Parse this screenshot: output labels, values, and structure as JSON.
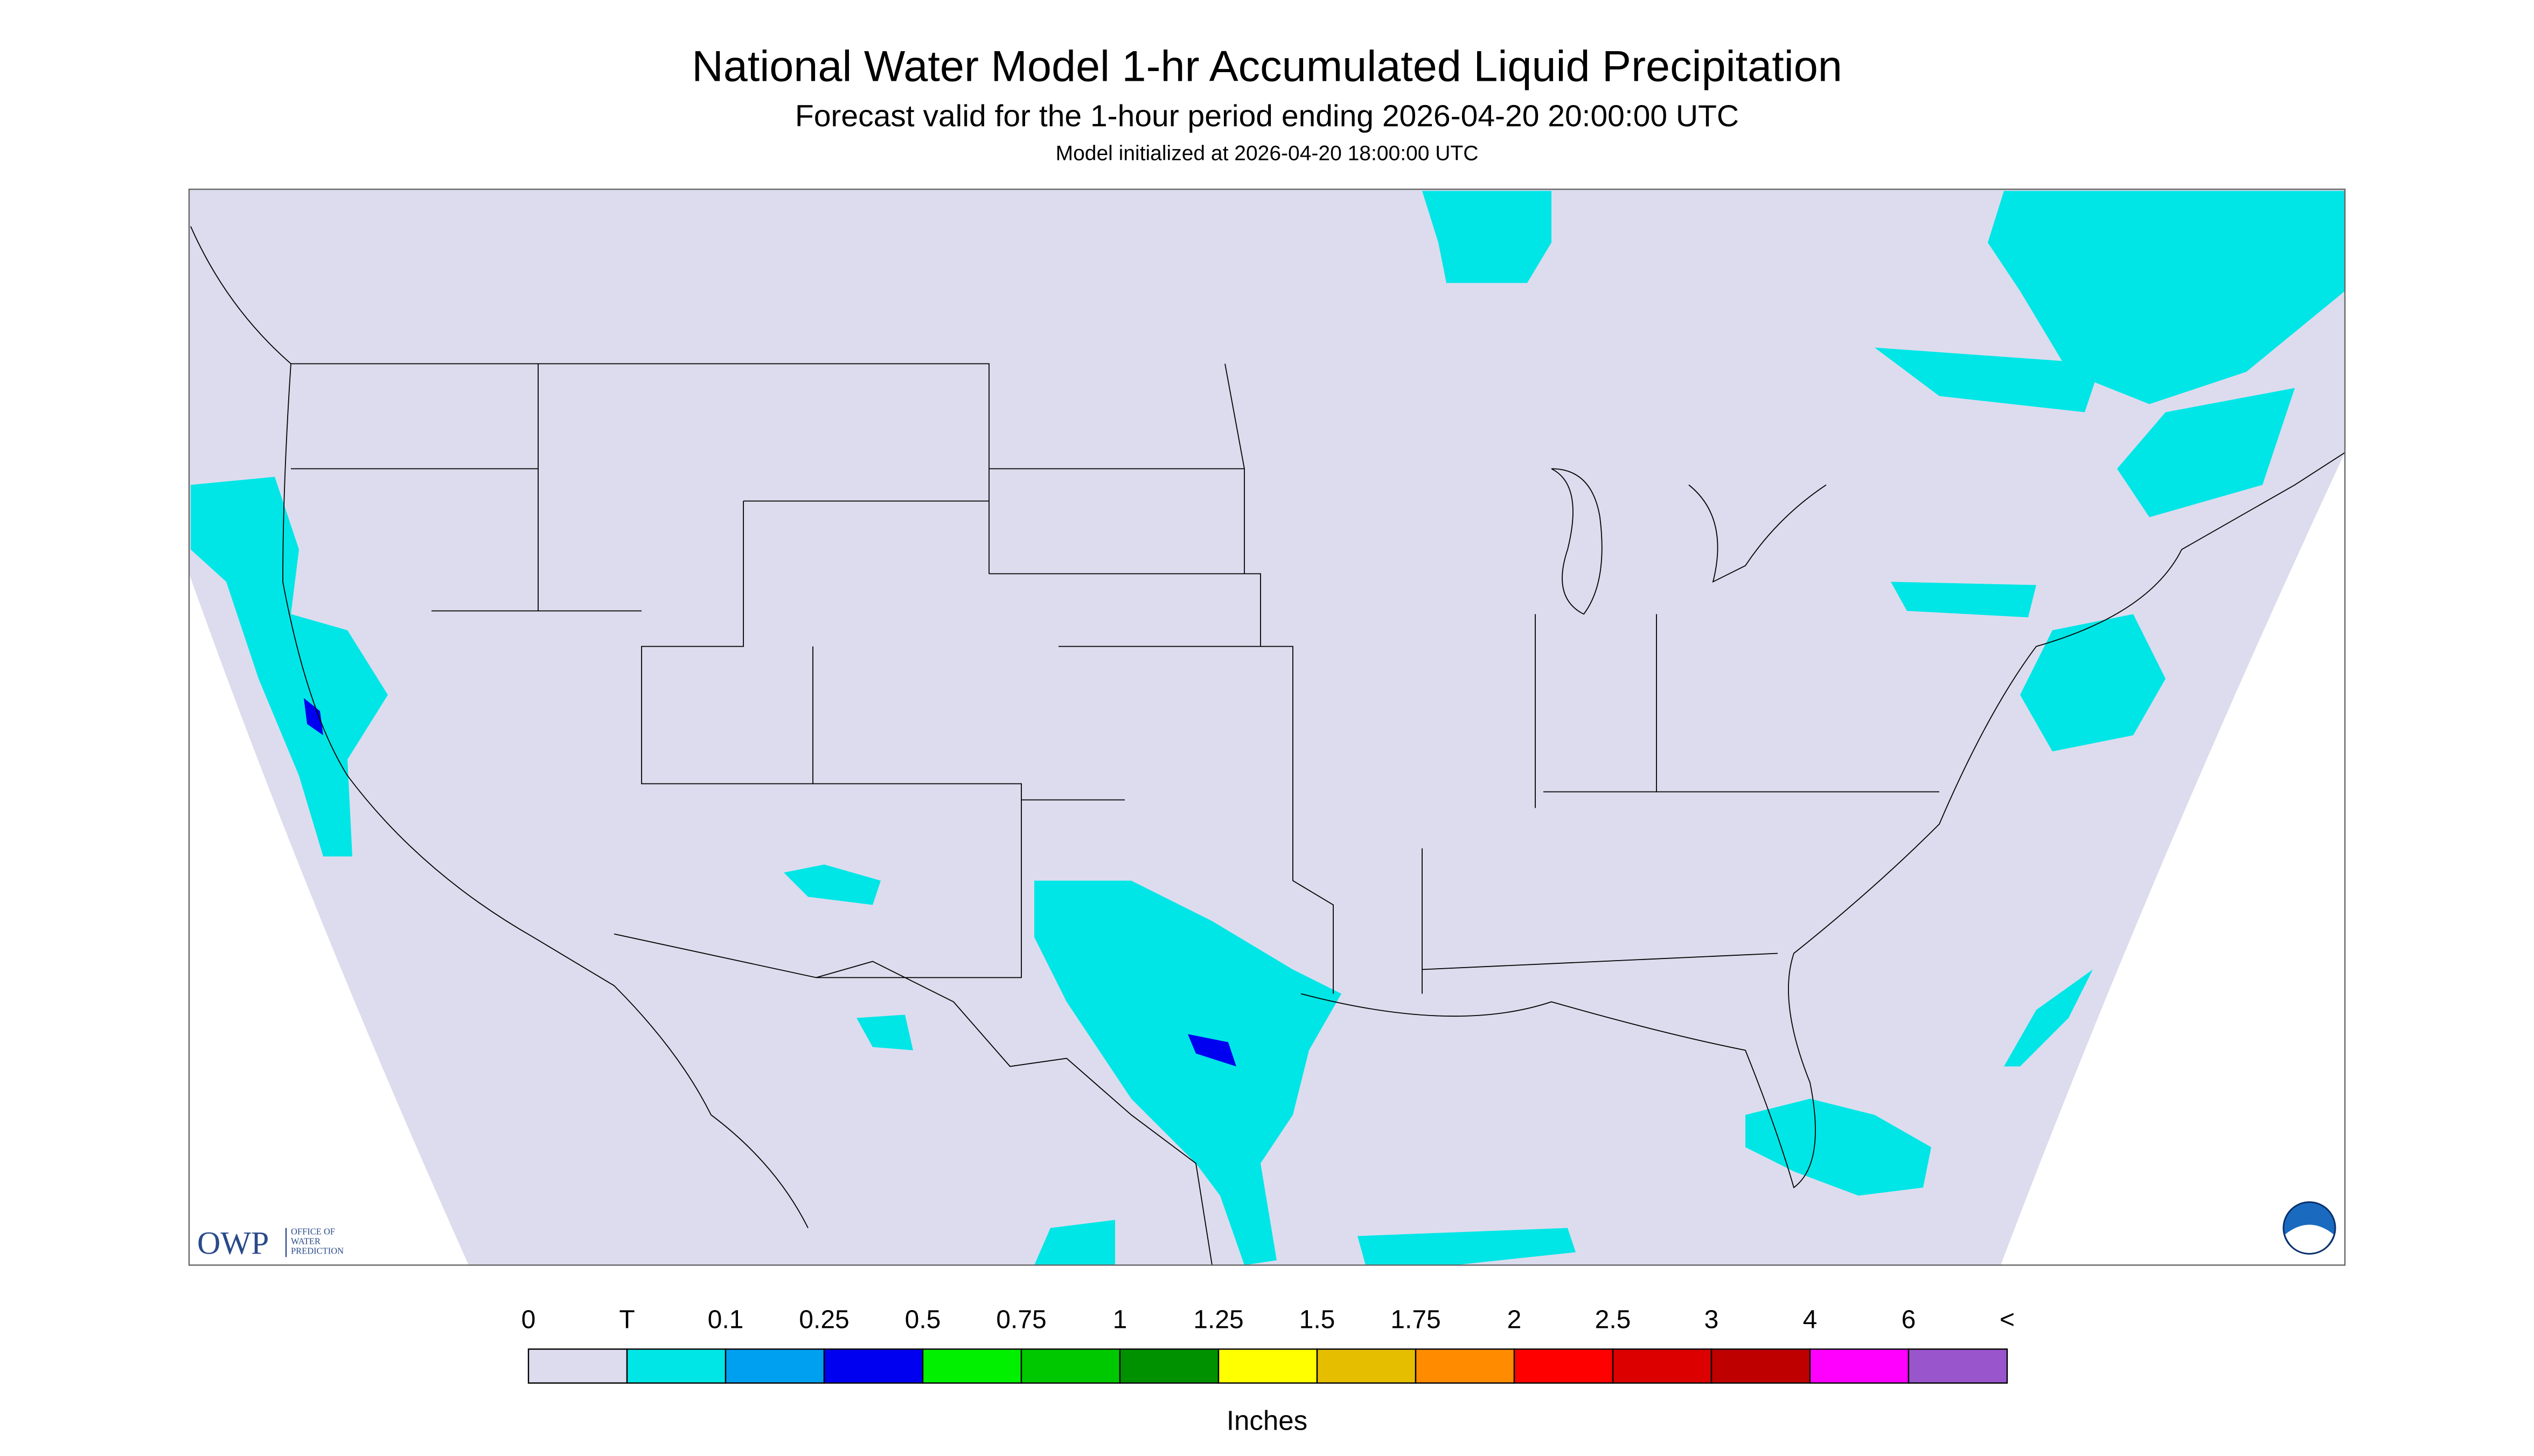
{
  "header": {
    "title": "National Water Model 1-hr Accumulated Liquid Precipitation",
    "subtitle": "Forecast valid for the 1-hour period ending 2026-04-20 20:00:00 UTC",
    "init": "Model initialized at 2026-04-20 18:00:00 UTC"
  },
  "logo": {
    "owp": "OWP",
    "office": [
      "OFFICE OF",
      "WATER",
      "PREDICTION"
    ]
  },
  "legend": {
    "labels": [
      "0",
      "T",
      "0.1",
      "0.25",
      "0.5",
      "0.75",
      "1",
      "1.25",
      "1.5",
      "1.75",
      "2",
      "2.5",
      "3",
      "4",
      "6",
      "<"
    ],
    "colors": [
      "#dcdcee",
      "#00e6e6",
      "#00a0f0",
      "#0000f0",
      "#00f000",
      "#00c800",
      "#009100",
      "#ffff00",
      "#e6be00",
      "#ff8c00",
      "#ff0000",
      "#dc0000",
      "#be0000",
      "#ff00ff",
      "#9955cc"
    ],
    "units": "Inches"
  }
}
